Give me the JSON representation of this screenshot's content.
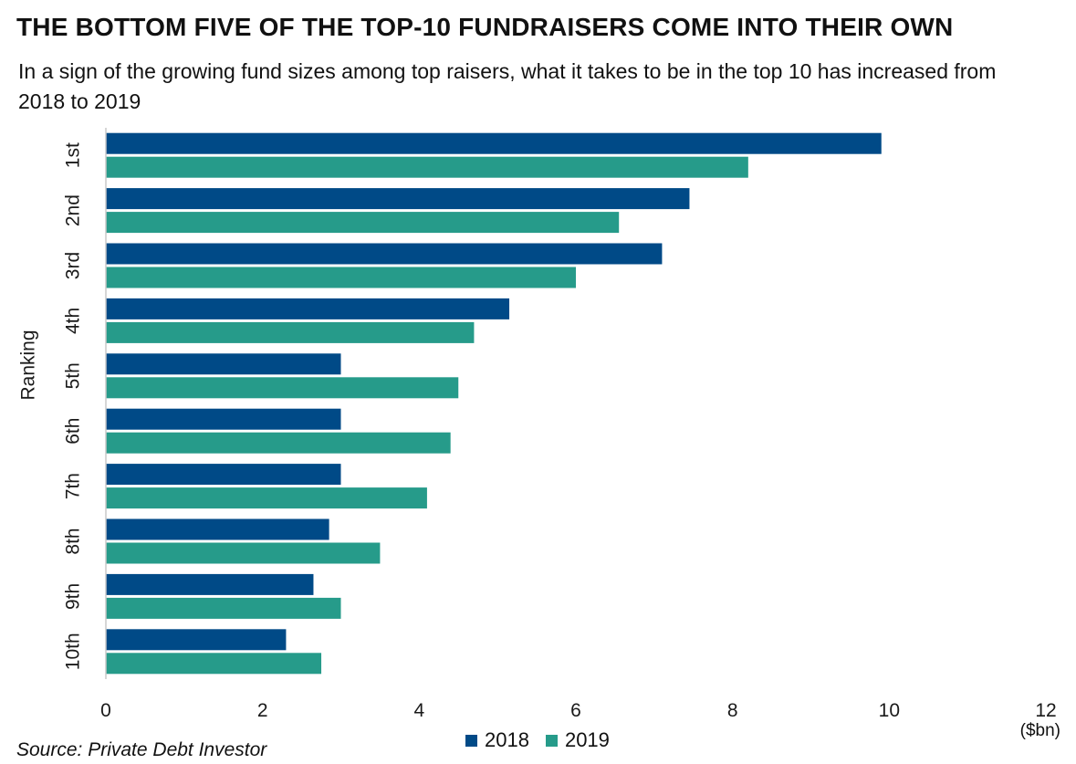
{
  "header": {
    "title": "THE BOTTOM FIVE OF THE TOP-10 FUNDRAISERS COME INTO THEIR OWN",
    "subtitle": "In a sign of the growing fund sizes among top raisers, what it takes to be in the top 10 has increased from 2018 to 2019"
  },
  "footer": {
    "source": "Source: Private Debt Investor",
    "unit": "($bn)"
  },
  "colors": {
    "2018": "#004a87",
    "2019": "#269b8a",
    "axis": "#c8c8c8"
  },
  "chart_data": {
    "type": "bar",
    "orientation": "horizontal",
    "title": "THE BOTTOM FIVE OF THE TOP-10 FUNDRAISERS COME INTO THEIR OWN",
    "subtitle": "In a sign of the growing fund sizes among top raisers, what it takes to be in the top 10 has increased from 2018 to 2019",
    "ylabel": "Ranking",
    "xlabel": "",
    "unit": "($bn)",
    "xlim": [
      0,
      12
    ],
    "xticks": [
      0,
      2,
      4,
      6,
      8,
      10,
      12
    ],
    "grid": false,
    "legend_position": "bottom",
    "categories": [
      "1st",
      "2nd",
      "3rd",
      "4th",
      "5th",
      "6th",
      "7th",
      "8th",
      "9th",
      "10th"
    ],
    "series": [
      {
        "name": "2018",
        "color": "#004a87",
        "values": [
          9.9,
          7.45,
          7.1,
          5.15,
          3.0,
          3.0,
          3.0,
          2.85,
          2.65,
          2.3
        ]
      },
      {
        "name": "2019",
        "color": "#269b8a",
        "values": [
          8.2,
          6.55,
          6.0,
          4.7,
          4.5,
          4.4,
          4.1,
          3.5,
          3.0,
          2.75
        ]
      }
    ]
  }
}
